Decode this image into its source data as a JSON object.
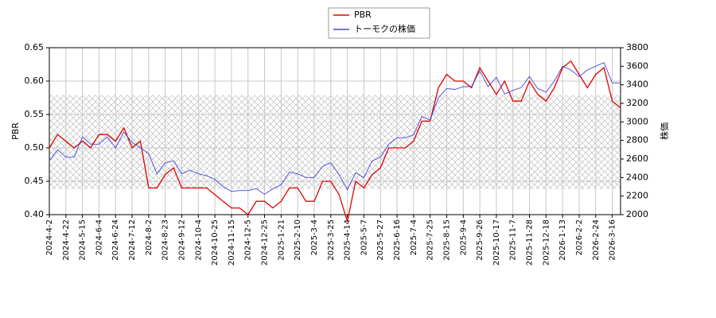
{
  "chart_data": {
    "type": "line",
    "categories": [
      "2024-4-2",
      null,
      "2024-4-22",
      null,
      "2024-5-15",
      null,
      "2024-6-4",
      null,
      "2024-6-24",
      null,
      "2024-7-12",
      null,
      "2024-8-2",
      null,
      "2024-8-23",
      null,
      "2024-9-12",
      null,
      "2024-10-4",
      null,
      "2024-10-25",
      null,
      "2024-11-15",
      null,
      "2024-12-5",
      null,
      "2024-12-25",
      null,
      "2025-1-21",
      null,
      "2025-2-10",
      null,
      "2025-3-4",
      null,
      "2025-3-25",
      null,
      "2025-4-14",
      null,
      "2025-5-7",
      null,
      "2025-5-27",
      null,
      "2025-6-16",
      null,
      "2025-7-4",
      null,
      "2025-7-25",
      null,
      "2025-8-15",
      null,
      "2025-9-4",
      null,
      "2025-9-26",
      null,
      "2025-10-17",
      null,
      "2025-11-7",
      null,
      "2025-11-28",
      null,
      "2025-12-18",
      null,
      "2026-1-13",
      null,
      "2026-2-2",
      null,
      "2026-2-24",
      null,
      "2026-3-16",
      null
    ],
    "series": [
      {
        "name": "PBR",
        "color": "#e00000",
        "axis": "y",
        "values": [
          0.5,
          0.52,
          0.51,
          0.5,
          0.51,
          0.5,
          0.52,
          0.52,
          0.51,
          0.53,
          0.5,
          0.51,
          0.44,
          0.44,
          0.46,
          0.47,
          0.44,
          0.44,
          0.44,
          0.44,
          0.43,
          0.42,
          0.41,
          0.41,
          0.4,
          0.42,
          0.42,
          0.41,
          0.42,
          0.44,
          0.44,
          0.42,
          0.42,
          0.45,
          0.45,
          0.43,
          0.39,
          0.45,
          0.44,
          0.46,
          0.47,
          0.5,
          0.5,
          0.5,
          0.51,
          0.54,
          0.54,
          0.59,
          0.61,
          0.6,
          0.6,
          0.59,
          0.62,
          0.6,
          0.58,
          0.6,
          0.57,
          0.57,
          0.6,
          0.58,
          0.57,
          0.59,
          0.62,
          0.63,
          0.61,
          0.59,
          0.61,
          0.62,
          0.57,
          0.56
        ]
      },
      {
        "name": "トーモクの株価",
        "color": "#4444dd",
        "axis": "y2",
        "values": [
          2580,
          2700,
          2620,
          2620,
          2840,
          2760,
          2760,
          2840,
          2720,
          2890,
          2780,
          2720,
          2660,
          2440,
          2560,
          2580,
          2440,
          2480,
          2440,
          2420,
          2380,
          2300,
          2250,
          2260,
          2260,
          2280,
          2220,
          2280,
          2320,
          2460,
          2440,
          2400,
          2400,
          2520,
          2560,
          2430,
          2270,
          2450,
          2400,
          2580,
          2620,
          2760,
          2830,
          2830,
          2860,
          3060,
          3020,
          3260,
          3360,
          3350,
          3380,
          3380,
          3550,
          3380,
          3480,
          3300,
          3340,
          3370,
          3490,
          3360,
          3320,
          3440,
          3600,
          3560,
          3490,
          3560,
          3600,
          3640,
          3420,
          3420
        ]
      }
    ],
    "shaded_range": [
      0.438,
      0.579
    ],
    "ylabel": "PBR",
    "y2label": "株価",
    "ylim": [
      0.4,
      0.65
    ],
    "yticks": [
      {
        "value": 0.4,
        "label": "0.40"
      },
      {
        "value": 0.45,
        "label": "0.45"
      },
      {
        "value": 0.5,
        "label": "0.50"
      },
      {
        "value": 0.55,
        "label": "0.55"
      },
      {
        "value": 0.6,
        "label": "0.60"
      },
      {
        "value": 0.65,
        "label": "0.65"
      }
    ],
    "y2lim": [
      2000,
      3800
    ],
    "y2ticks": [
      2000,
      2200,
      2400,
      2600,
      2800,
      3000,
      3200,
      3400,
      3600,
      3800
    ],
    "grid": true
  }
}
